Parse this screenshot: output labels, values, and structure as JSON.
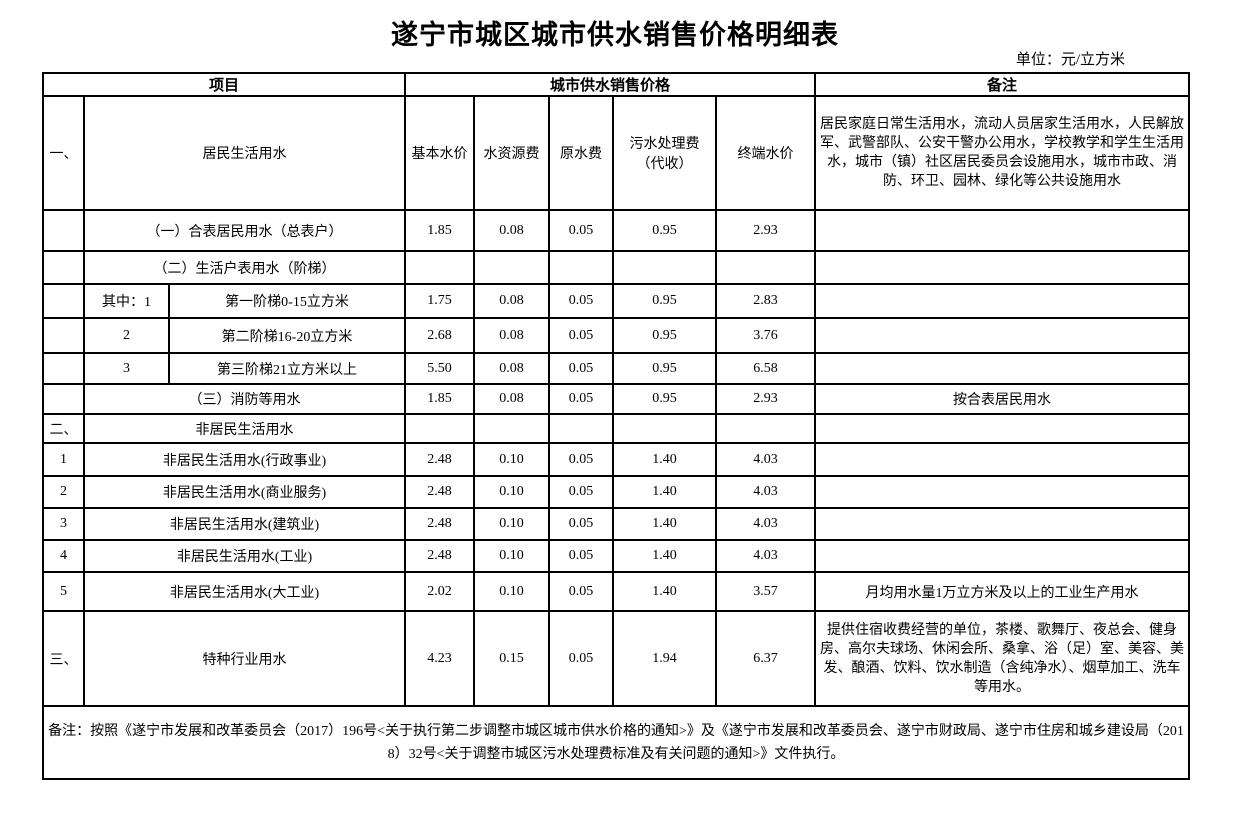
{
  "page": {
    "title": "遂宁市城区城市供水销售价格明细表",
    "unit_note": "单位：元/立方米"
  },
  "table": {
    "headers": {
      "project": "项目",
      "price_group": "城市供水销售价格",
      "remark": "备注"
    },
    "price_columns": [
      "基本水价",
      "水资源费",
      "原水费",
      "污水处理费（代收）",
      "终端水价"
    ],
    "rows": [
      {
        "kind": "group",
        "index": "一、",
        "sub": "",
        "name": "居民生活用水",
        "values": null,
        "remark": "居民家庭日常生活用水，流动人员居家生活用水，人民解放军、武警部队、公安干警办公用水，学校教学和学生生活用水，城市（镇）社区居民委员会设施用水，城市市政、消防、环卫、园林、绿化等公共设施用水"
      },
      {
        "kind": "item",
        "index": "",
        "sub": "",
        "name": "（一）合表居民用水（总表户）",
        "values": [
          "1.85",
          "0.08",
          "0.05",
          "0.95",
          "2.93"
        ],
        "remark": ""
      },
      {
        "kind": "item",
        "index": "",
        "sub": "",
        "name": "（二）生活户表用水（阶梯）",
        "values": [
          "",
          "",
          "",
          "",
          ""
        ],
        "remark": ""
      },
      {
        "kind": "tier",
        "index": "",
        "sub": "其中：1",
        "name": "第一阶梯0-15立方米",
        "values": [
          "1.75",
          "0.08",
          "0.05",
          "0.95",
          "2.83"
        ],
        "remark": ""
      },
      {
        "kind": "tier",
        "index": "",
        "sub": "2",
        "name": "第二阶梯16-20立方米",
        "values": [
          "2.68",
          "0.08",
          "0.05",
          "0.95",
          "3.76"
        ],
        "remark": ""
      },
      {
        "kind": "tier",
        "index": "",
        "sub": "3",
        "name": "第三阶梯21立方米以上",
        "values": [
          "5.50",
          "0.08",
          "0.05",
          "0.95",
          "6.58"
        ],
        "remark": ""
      },
      {
        "kind": "item",
        "index": "",
        "sub": "",
        "name": "（三）消防等用水",
        "values": [
          "1.85",
          "0.08",
          "0.05",
          "0.95",
          "2.93"
        ],
        "remark": "按合表居民用水"
      },
      {
        "kind": "item",
        "index": "二、",
        "sub": "",
        "name": "非居民生活用水",
        "values": [
          "",
          "",
          "",
          "",
          ""
        ],
        "remark": ""
      },
      {
        "kind": "item",
        "index": "1",
        "sub": "",
        "name": "非居民生活用水(行政事业)",
        "values": [
          "2.48",
          "0.10",
          "0.05",
          "1.40",
          "4.03"
        ],
        "remark": ""
      },
      {
        "kind": "item",
        "index": "2",
        "sub": "",
        "name": "非居民生活用水(商业服务)",
        "values": [
          "2.48",
          "0.10",
          "0.05",
          "1.40",
          "4.03"
        ],
        "remark": ""
      },
      {
        "kind": "item",
        "index": "3",
        "sub": "",
        "name": "非居民生活用水(建筑业)",
        "values": [
          "2.48",
          "0.10",
          "0.05",
          "1.40",
          "4.03"
        ],
        "remark": ""
      },
      {
        "kind": "item",
        "index": "4",
        "sub": "",
        "name": "非居民生活用水(工业)",
        "values": [
          "2.48",
          "0.10",
          "0.05",
          "1.40",
          "4.03"
        ],
        "remark": ""
      },
      {
        "kind": "item",
        "index": "5",
        "sub": "",
        "name": "非居民生活用水(大工业)",
        "values": [
          "2.02",
          "0.10",
          "0.05",
          "1.40",
          "3.57"
        ],
        "remark": "月均用水量1万立方米及以上的工业生产用水"
      },
      {
        "kind": "item",
        "index": "三、",
        "sub": "",
        "name": "特种行业用水",
        "values": [
          "4.23",
          "0.15",
          "0.05",
          "1.94",
          "6.37"
        ],
        "remark": "提供住宿收费经营的单位，茶楼、歌舞厅、夜总会、健身房、高尔夫球场、休闲会所、桑拿、浴（足）室、美容、美发、酿酒、饮料、饮水制造（含纯净水）、烟草加工、洗车等用水。"
      }
    ],
    "footnote": "备注：按照《遂宁市发展和改革委员会（2017）196号<关于执行第二步调整市城区城市供水价格的通知>》及《遂宁市发展和改革委员会、遂宁市财政局、遂宁市住房和城乡建设局（2018）32号<关于调整市城区污水处理费标准及有关问题的通知>》文件执行。"
  }
}
